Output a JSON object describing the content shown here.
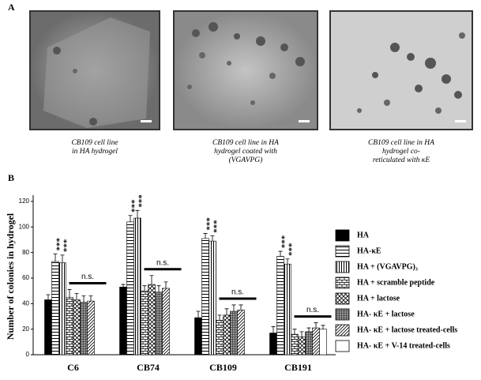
{
  "panel_a": {
    "label": "A",
    "captions": [
      [
        "CB109 cell line",
        "in HA hydrogel"
      ],
      [
        "CB109 cell line in HA",
        "hydrogel coated with",
        "(VGAVPG)"
      ],
      [
        "CB109 cell line in HA",
        "hydrogel co-",
        "reticulated with κE"
      ]
    ]
  },
  "panel_b": {
    "label": "B"
  },
  "chart_data": {
    "type": "bar",
    "y_label": "Number of colonies in hydrogel",
    "categories": [
      "C6",
      "CB74",
      "CB109",
      "CB191"
    ],
    "ylim": [
      0,
      120
    ],
    "yticks": [
      0,
      20,
      40,
      60,
      80,
      100,
      120
    ],
    "stars_label": "***",
    "ns_label": "n.s.",
    "series": [
      {
        "name": "HA",
        "color": "#000000",
        "pattern": "solid",
        "values": [
          43,
          53,
          29,
          17
        ],
        "errors": [
          4,
          2,
          5,
          5
        ]
      },
      {
        "name": "HA-κE",
        "color": "#000000",
        "pattern": "hlines",
        "values": [
          73,
          104,
          91,
          77
        ],
        "errors": [
          6,
          5,
          4,
          4
        ]
      },
      {
        "name": "HA + (VGAVPG)₃",
        "color": "#000000",
        "pattern": "vlines",
        "values": [
          72,
          107,
          89,
          71
        ],
        "errors": [
          6,
          6,
          4,
          4
        ]
      },
      {
        "name": "HA + scramble peptide",
        "color": "#000000",
        "pattern": "brick",
        "values": [
          45,
          50,
          27,
          16
        ],
        "errors": [
          6,
          4,
          4,
          4
        ]
      },
      {
        "name": "HA + lactose",
        "color": "#000000",
        "pattern": "crosshatch",
        "values": [
          43,
          55,
          31,
          14
        ],
        "errors": [
          5,
          7,
          5,
          4
        ]
      },
      {
        "name": "HA- κE + lactose",
        "color": "#555555",
        "pattern": "dense",
        "values": [
          41,
          49,
          34,
          18
        ],
        "errors": [
          5,
          5,
          5,
          3
        ]
      },
      {
        "name": "HA- κE + lactose treated-cells",
        "color": "#000000",
        "pattern": "diagonal",
        "values": [
          42,
          52,
          35,
          21
        ],
        "errors": [
          4,
          5,
          4,
          4
        ]
      },
      {
        "name": "HA- κE + V-14 treated-cells",
        "color": "#000000",
        "pattern": "white",
        "values": [
          null,
          null,
          null,
          20
        ],
        "errors": [
          null,
          null,
          null,
          3
        ]
      }
    ]
  }
}
